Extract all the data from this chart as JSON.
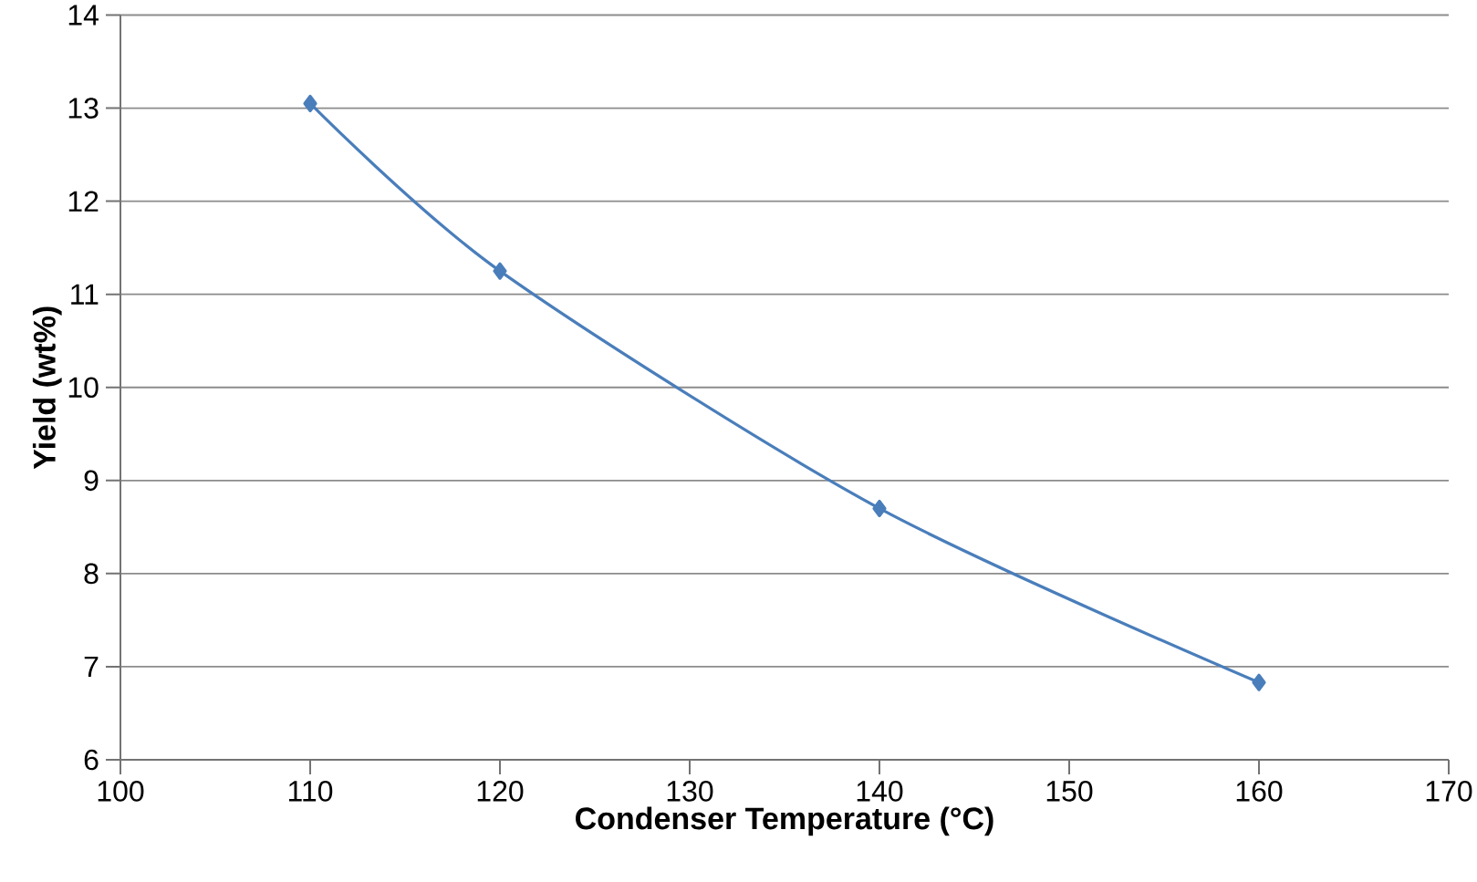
{
  "chart_data": {
    "type": "line",
    "xlabel": "Condenser Temperature (°C)",
    "ylabel": "Yield (wt%)",
    "x": [
      110,
      120,
      140,
      160
    ],
    "series": [
      {
        "color": "#4a7ebb",
        "values": [
          13.05,
          11.25,
          8.7,
          6.83
        ]
      }
    ],
    "xlim": [
      100,
      170
    ],
    "xticks": [
      100,
      110,
      120,
      130,
      140,
      150,
      160,
      170
    ],
    "ylim": [
      6,
      14
    ],
    "yticks": [
      6,
      7,
      8,
      9,
      10,
      11,
      12,
      13,
      14
    ],
    "grid": "y",
    "marker": "diamond",
    "line_style": "solid"
  }
}
